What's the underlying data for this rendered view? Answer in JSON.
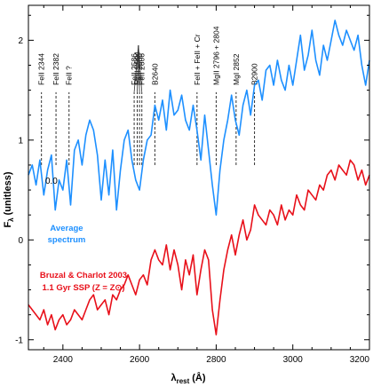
{
  "chart_data": {
    "type": "line",
    "xlabel": "λ",
    "xlabel_sub": "rest",
    "xlabel_unit": "(Å)",
    "ylabel": "F",
    "ylabel_sub": "λ",
    "ylabel_unit": "(unitless)",
    "xlim": [
      2310,
      3200
    ],
    "ylim": [
      -1.1,
      2.35
    ],
    "x_ticks": [
      2400,
      2600,
      2800,
      3000,
      3200
    ],
    "y_ticks": [
      -1,
      0,
      1,
      2
    ],
    "inline_tick_label": {
      "text": "0.0",
      "x": 2340,
      "y": 0.6
    },
    "series": [
      {
        "name": "Average spectrum",
        "label_lines": [
          "Average",
          "spectrum"
        ],
        "color": "#1e90ff",
        "x": [
          2310,
          2320,
          2330,
          2340,
          2350,
          2360,
          2370,
          2380,
          2390,
          2400,
          2410,
          2420,
          2430,
          2440,
          2450,
          2460,
          2470,
          2480,
          2490,
          2500,
          2510,
          2520,
          2530,
          2540,
          2550,
          2560,
          2570,
          2580,
          2590,
          2600,
          2610,
          2620,
          2630,
          2640,
          2650,
          2660,
          2670,
          2680,
          2690,
          2700,
          2710,
          2720,
          2730,
          2740,
          2750,
          2760,
          2770,
          2780,
          2790,
          2800,
          2810,
          2820,
          2830,
          2840,
          2850,
          2860,
          2870,
          2880,
          2890,
          2900,
          2910,
          2920,
          2930,
          2940,
          2950,
          2960,
          2970,
          2980,
          2990,
          3000,
          3010,
          3020,
          3030,
          3040,
          3050,
          3060,
          3070,
          3080,
          3090,
          3100,
          3110,
          3120,
          3130,
          3140,
          3150,
          3160,
          3170,
          3180,
          3190,
          3200
        ],
        "values": [
          0.65,
          0.75,
          0.55,
          0.8,
          0.45,
          0.7,
          0.85,
          0.3,
          0.6,
          0.5,
          0.8,
          0.35,
          0.9,
          1.0,
          0.75,
          1.05,
          1.2,
          1.1,
          0.85,
          0.4,
          0.8,
          0.45,
          0.9,
          0.3,
          0.7,
          1.0,
          1.1,
          0.8,
          0.6,
          0.5,
          0.8,
          1.0,
          1.05,
          1.35,
          1.2,
          1.4,
          1.1,
          1.5,
          1.25,
          1.3,
          1.45,
          1.2,
          1.1,
          1.35,
          1.1,
          0.8,
          1.25,
          0.9,
          0.55,
          0.25,
          0.7,
          1.0,
          1.2,
          1.45,
          1.2,
          1.05,
          1.35,
          1.5,
          1.25,
          1.55,
          1.6,
          1.4,
          1.7,
          1.75,
          1.55,
          1.8,
          1.6,
          1.5,
          1.75,
          1.55,
          1.8,
          2.05,
          1.7,
          1.85,
          2.1,
          1.8,
          1.65,
          1.95,
          1.8,
          2.0,
          2.2,
          2.05,
          1.95,
          2.1,
          2.0,
          1.9,
          2.05,
          1.75,
          1.55,
          1.8
        ]
      },
      {
        "name": "Bruzal & Charlot 2003 1.1 Gyr SSP (Z = Z⊙)",
        "label_lines": [
          "Bruzal & Charlot 2003",
          "1.1 Gyr SSP (Z = Z⊙)"
        ],
        "color": "#e8101a",
        "x": [
          2310,
          2320,
          2330,
          2340,
          2350,
          2360,
          2370,
          2380,
          2390,
          2400,
          2410,
          2420,
          2430,
          2440,
          2450,
          2460,
          2470,
          2480,
          2490,
          2500,
          2510,
          2520,
          2530,
          2540,
          2550,
          2560,
          2570,
          2580,
          2590,
          2600,
          2610,
          2620,
          2630,
          2640,
          2650,
          2660,
          2670,
          2680,
          2690,
          2700,
          2710,
          2720,
          2730,
          2740,
          2750,
          2760,
          2770,
          2780,
          2790,
          2800,
          2810,
          2820,
          2830,
          2840,
          2850,
          2860,
          2870,
          2880,
          2890,
          2900,
          2910,
          2920,
          2930,
          2940,
          2950,
          2960,
          2970,
          2980,
          2990,
          3000,
          3010,
          3020,
          3030,
          3040,
          3050,
          3060,
          3070,
          3080,
          3090,
          3100,
          3110,
          3120,
          3130,
          3140,
          3150,
          3160,
          3170,
          3180,
          3190,
          3200
        ],
        "values": [
          -0.65,
          -0.7,
          -0.75,
          -0.8,
          -0.7,
          -0.85,
          -0.75,
          -0.9,
          -0.8,
          -0.75,
          -0.85,
          -0.8,
          -0.7,
          -0.75,
          -0.8,
          -0.7,
          -0.6,
          -0.55,
          -0.7,
          -0.65,
          -0.6,
          -0.75,
          -0.55,
          -0.6,
          -0.5,
          -0.45,
          -0.35,
          -0.45,
          -0.55,
          -0.4,
          -0.35,
          -0.45,
          -0.2,
          -0.1,
          -0.2,
          -0.25,
          -0.05,
          -0.3,
          -0.1,
          -0.25,
          -0.5,
          -0.2,
          -0.35,
          -0.15,
          -0.55,
          -0.3,
          -0.1,
          -0.2,
          -0.7,
          -0.95,
          -0.6,
          -0.3,
          -0.1,
          0.05,
          -0.15,
          0.05,
          0.2,
          0.0,
          0.1,
          0.35,
          0.25,
          0.2,
          0.15,
          0.3,
          0.25,
          0.15,
          0.35,
          0.2,
          0.3,
          0.25,
          0.45,
          0.35,
          0.3,
          0.5,
          0.45,
          0.4,
          0.55,
          0.5,
          0.65,
          0.7,
          0.6,
          0.75,
          0.7,
          0.65,
          0.8,
          0.75,
          0.6,
          0.7,
          0.55,
          0.65
        ]
      }
    ],
    "line_markers": [
      {
        "label": "FeII 2344",
        "x": 2344
      },
      {
        "label": "FeII 2382",
        "x": 2382
      },
      {
        "label": "FeII ?",
        "x": 2416
      },
      {
        "label": "FeII 2586",
        "x": 2586
      },
      {
        "label": "MnII 2594",
        "x": 2594
      },
      {
        "label": "FeII 2600",
        "x": 2600
      },
      {
        "label": "FeII 2606",
        "x": 2606
      },
      {
        "label": "B2640",
        "x": 2640
      },
      {
        "label": "FeII + FeII + Cr",
        "x": 2750
      },
      {
        "label": "MgII 2796 + 2804",
        "x": 2800
      },
      {
        "label": "MgI 2852",
        "x": 2852
      },
      {
        "label": "B2900",
        "x": 2900
      }
    ]
  }
}
